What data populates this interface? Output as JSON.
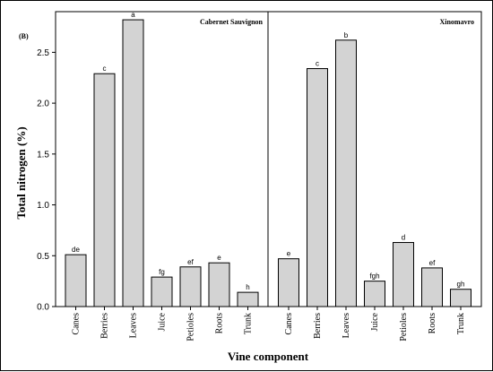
{
  "chart_data": {
    "type": "bar",
    "panel_label": "(B)",
    "xlabel": "Vine component",
    "ylabel": "Total nitrogen (%)",
    "ylim": [
      0,
      2.9
    ],
    "yticks": [
      "0.0",
      "0.5",
      "1.0",
      "1.5",
      "2.0",
      "2.5"
    ],
    "ytick_values": [
      0,
      0.5,
      1.0,
      1.5,
      2.0,
      2.5
    ],
    "grid": false,
    "bar_color": "#d3d3d3",
    "panels": [
      {
        "title": "Cabernet Sauvignon",
        "categories": [
          "Canes",
          "Berries",
          "Leaves",
          "Juice",
          "Petioles",
          "Roots",
          "Trunk"
        ],
        "values": [
          0.51,
          2.29,
          2.82,
          0.29,
          0.39,
          0.43,
          0.14
        ],
        "letters": [
          "de",
          "c",
          "a",
          "fg",
          "ef",
          "e",
          "h"
        ]
      },
      {
        "title": "Xinomavro",
        "categories": [
          "Canes",
          "Berries",
          "Leaves",
          "Juice",
          "Petioles",
          "Roots",
          "Trunk"
        ],
        "values": [
          0.47,
          2.34,
          2.62,
          0.25,
          0.63,
          0.38,
          0.17
        ],
        "letters": [
          "e",
          "c",
          "b",
          "fgh",
          "d",
          "ef",
          "gh"
        ]
      }
    ]
  }
}
